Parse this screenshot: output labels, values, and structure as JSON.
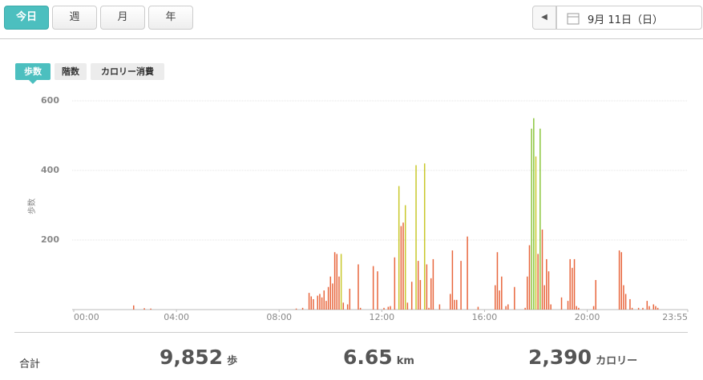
{
  "tabs": [
    "今日",
    "週",
    "月",
    "年"
  ],
  "date": "9月 11日（日）",
  "metric_tabs": [
    "歩数",
    "階数",
    "カロリー消費"
  ],
  "chart_data": {
    "type": "bar",
    "y_label": "歩数",
    "x": [
      140,
      165,
      180,
      520,
      535,
      550,
      555,
      560,
      570,
      575,
      580,
      585,
      590,
      595,
      600,
      605,
      610,
      615,
      620,
      625,
      630,
      640,
      645,
      665,
      670,
      700,
      710,
      725,
      735,
      740,
      750,
      760,
      765,
      770,
      775,
      780,
      790,
      800,
      805,
      810,
      820,
      825,
      830,
      835,
      840,
      855,
      880,
      885,
      890,
      895,
      905,
      920,
      945,
      985,
      990,
      995,
      1000,
      1010,
      1015,
      1030,
      1055,
      1060,
      1065,
      1070,
      1075,
      1080,
      1085,
      1090,
      1095,
      1100,
      1105,
      1110,
      1115,
      1140,
      1155,
      1160,
      1165,
      1170,
      1175,
      1180,
      1215,
      1220,
      1275,
      1280,
      1285,
      1290,
      1300,
      1305,
      1320,
      1330,
      1340,
      1345,
      1355,
      1360,
      1365
    ],
    "values": [
      12,
      4,
      3,
      3,
      5,
      48,
      38,
      30,
      40,
      45,
      35,
      55,
      25,
      65,
      95,
      75,
      165,
      160,
      95,
      160,
      20,
      15,
      60,
      130,
      5,
      125,
      110,
      5,
      8,
      10,
      150,
      355,
      240,
      250,
      300,
      20,
      80,
      415,
      140,
      85,
      420,
      130,
      5,
      90,
      145,
      15,
      45,
      170,
      28,
      28,
      140,
      210,
      8,
      70,
      165,
      55,
      95,
      10,
      15,
      65,
      5,
      95,
      185,
      520,
      550,
      440,
      160,
      520,
      230,
      70,
      145,
      110,
      15,
      35,
      25,
      145,
      120,
      145,
      10,
      5,
      10,
      85,
      170,
      165,
      70,
      45,
      30,
      5,
      5,
      5,
      25,
      10,
      15,
      10,
      5
    ],
    "colors": [
      "#e8663d",
      "#e8663d",
      "#e8663d",
      "#e8663d",
      "#e8663d",
      "#e8663d",
      "#e8663d",
      "#e8663d",
      "#e8663d",
      "#e8663d",
      "#e8663d",
      "#e8663d",
      "#e8663d",
      "#e8663d",
      "#e8663d",
      "#e8663d",
      "#e8663d",
      "#e8663d",
      "#e8663d",
      "#c9c82b",
      "#e8663d",
      "#e8663d",
      "#e8663d",
      "#e8663d",
      "#e8663d",
      "#e8663d",
      "#e8663d",
      "#e8663d",
      "#e8663d",
      "#e8663d",
      "#e8663d",
      "#c9c82b",
      "#e8663d",
      "#e8663d",
      "#c9c82b",
      "#e8663d",
      "#e8663d",
      "#c9c82b",
      "#e8663d",
      "#e8663d",
      "#c9c82b",
      "#e8663d",
      "#e8663d",
      "#e8663d",
      "#e8663d",
      "#e8663d",
      "#e8663d",
      "#e8663d",
      "#e8663d",
      "#e8663d",
      "#e8663d",
      "#e8663d",
      "#e8663d",
      "#e8663d",
      "#e8663d",
      "#e8663d",
      "#e8663d",
      "#e8663d",
      "#e8663d",
      "#e8663d",
      "#e8663d",
      "#e8663d",
      "#e8663d",
      "#8cc63f",
      "#8cc63f",
      "#c9c82b",
      "#e8663d",
      "#8cc63f",
      "#e8663d",
      "#e8663d",
      "#e8663d",
      "#e8663d",
      "#e8663d",
      "#e8663d",
      "#e8663d",
      "#e8663d",
      "#e8663d",
      "#e8663d",
      "#e8663d",
      "#e8663d",
      "#e8663d",
      "#e8663d",
      "#e8663d",
      "#e8663d",
      "#e8663d",
      "#e8663d",
      "#e8663d",
      "#e8663d",
      "#e8663d",
      "#e8663d",
      "#e8663d",
      "#e8663d",
      "#e8663d",
      "#e8663d",
      "#e8663d"
    ],
    "xlim": [
      0,
      1435
    ],
    "ylim": [
      0,
      600
    ],
    "xticks": [
      {
        "value": 0,
        "label": "00:00"
      },
      {
        "value": 240,
        "label": "04:00"
      },
      {
        "value": 480,
        "label": "08:00"
      },
      {
        "value": 720,
        "label": "12:00"
      },
      {
        "value": 960,
        "label": "16:00"
      },
      {
        "value": 1200,
        "label": "20:00"
      },
      {
        "value": 1435,
        "label": "23:55"
      }
    ],
    "yticks": [
      200,
      400,
      600
    ],
    "grid": true
  },
  "summary": {
    "label": "合計",
    "items": [
      {
        "value": "9,852",
        "unit": "歩"
      },
      {
        "value": "6.65",
        "unit": "km"
      },
      {
        "value": "2,390",
        "unit": "カロリー"
      }
    ]
  }
}
